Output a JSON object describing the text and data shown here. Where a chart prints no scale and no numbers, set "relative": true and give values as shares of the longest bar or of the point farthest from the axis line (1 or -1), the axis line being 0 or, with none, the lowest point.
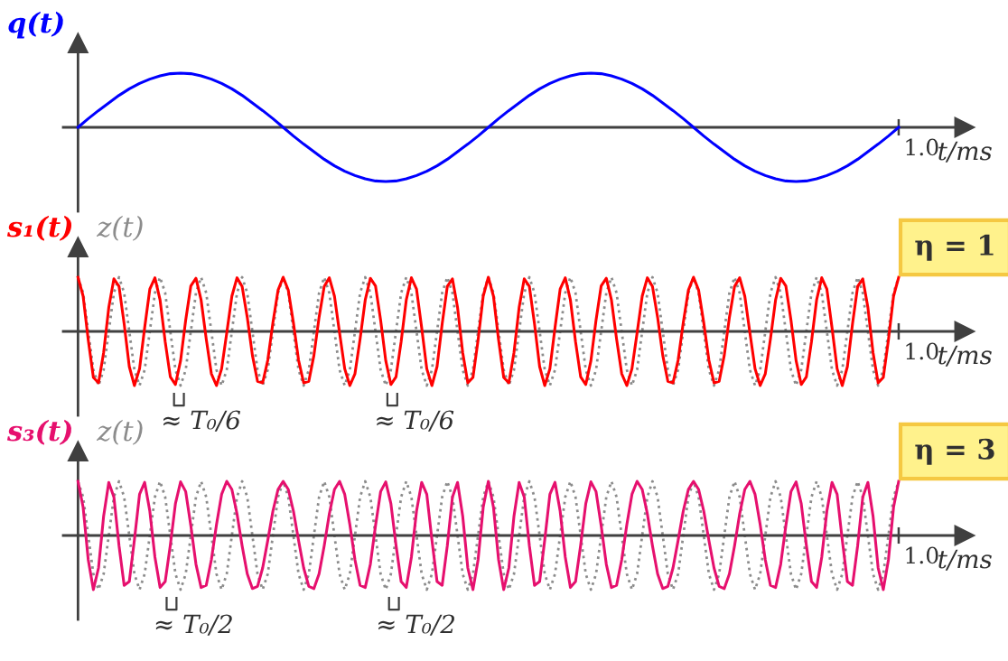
{
  "chart_data": [
    {
      "type": "line",
      "relative": true,
      "xlabel": "t/ms",
      "legend": "top left",
      "categories": [
        null,
        null,
        null,
        null,
        null,
        null,
        null,
        null,
        null,
        null,
        null,
        null,
        null,
        null,
        null,
        null,
        null,
        null,
        null,
        null,
        null,
        null,
        null,
        null,
        null,
        null,
        null,
        null,
        null,
        null,
        null,
        null,
        null,
        null,
        null,
        null,
        null,
        null,
        null,
        null,
        null,
        null,
        null,
        null,
        null,
        null,
        null,
        null,
        null,
        null,
        null,
        null,
        null,
        null,
        null,
        null,
        null,
        null,
        null,
        null,
        null,
        null,
        null,
        null,
        null,
        null,
        null,
        null,
        null,
        null,
        null,
        null,
        null,
        null,
        null,
        null,
        null,
        null,
        null,
        null,
        null
      ],
      "annotations": [
        "1.0"
      ],
      "series": [
        {
          "name": "q(t)",
          "color": "#0000ff",
          "line_style": "solid",
          "values": [
            0,
            0.16,
            0.31,
            0.45,
            0.59,
            0.71,
            0.81,
            0.89,
            0.95,
            0.99,
            1,
            0.99,
            0.95,
            0.89,
            0.81,
            0.71,
            0.59,
            0.45,
            0.31,
            0.16,
            0,
            -0.16,
            -0.31,
            -0.45,
            -0.59,
            -0.71,
            -0.81,
            -0.89,
            -0.95,
            -0.99,
            -1,
            -0.99,
            -0.95,
            -0.89,
            -0.81,
            -0.71,
            -0.59,
            -0.45,
            -0.31,
            -0.16,
            0,
            0.16,
            0.31,
            0.45,
            0.59,
            0.71,
            0.81,
            0.89,
            0.95,
            0.99,
            1,
            0.99,
            0.95,
            0.89,
            0.81,
            0.71,
            0.59,
            0.45,
            0.31,
            0.16,
            0,
            -0.16,
            -0.31,
            -0.45,
            -0.59,
            -0.71,
            -0.81,
            -0.89,
            -0.95,
            -0.99,
            -1,
            -0.99,
            -0.95,
            -0.89,
            -0.81,
            -0.71,
            -0.59,
            -0.45,
            -0.31,
            -0.16,
            0
          ]
        }
      ]
    },
    {
      "type": "line",
      "relative": true,
      "xlabel": "t/ms",
      "legend": "top left",
      "annotations": [
        "1.0",
        "η = 1",
        "≈ T₀/6",
        "≈ T₀/6"
      ],
      "categories": [
        null,
        null,
        null,
        null,
        null,
        null,
        null,
        null,
        null,
        null,
        null,
        null,
        null,
        null,
        null,
        null,
        null,
        null,
        null,
        null,
        null,
        null,
        null,
        null,
        null,
        null,
        null,
        null,
        null,
        null,
        null,
        null,
        null,
        null,
        null,
        null,
        null,
        null,
        null,
        null,
        null,
        null,
        null,
        null,
        null,
        null,
        null,
        null,
        null,
        null,
        null,
        null,
        null,
        null,
        null,
        null,
        null,
        null,
        null,
        null,
        null,
        null,
        null,
        null,
        null,
        null,
        null,
        null,
        null,
        null,
        null,
        null,
        null,
        null,
        null,
        null,
        null,
        null,
        null,
        null,
        null,
        null,
        null,
        null,
        null,
        null,
        null,
        null,
        null,
        null,
        null,
        null,
        null,
        null,
        null,
        null,
        null,
        null,
        null,
        null,
        null,
        null,
        null,
        null,
        null,
        null,
        null,
        null,
        null,
        null,
        null,
        null,
        null,
        null,
        null,
        null,
        null,
        null,
        null,
        null,
        null,
        null,
        null,
        null,
        null,
        null,
        null,
        null,
        null,
        null,
        null,
        null,
        null,
        null,
        null,
        null,
        null,
        null,
        null,
        null,
        null,
        null,
        null,
        null,
        null,
        null,
        null,
        null,
        null,
        null,
        null,
        null,
        null,
        null,
        null,
        null,
        null,
        null,
        null,
        null,
        null
      ],
      "series": [
        {
          "name": "s₁(t)",
          "color": "#ff0000",
          "line_style": "solid",
          "values": [
            1,
            0.65,
            -0.16,
            -0.85,
            -0.95,
            -0.39,
            0.44,
            0.97,
            0.83,
            0.14,
            -0.65,
            -1,
            -0.69,
            0.07,
            0.78,
            0.99,
            0.58,
            -0.19,
            -0.84,
            -0.98,
            -0.54,
            0.21,
            0.84,
            0.98,
            0.58,
            -0.14,
            -0.78,
            -1,
            -0.69,
            -0.03,
            0.65,
            0.99,
            0.83,
            0.26,
            -0.44,
            -0.92,
            -0.95,
            -0.53,
            0.16,
            0.76,
            1,
            0.76,
            0.16,
            -0.53,
            -0.95,
            -0.92,
            -0.44,
            0.26,
            0.83,
            0.99,
            0.65,
            -0.03,
            -0.69,
            -1,
            -0.78,
            -0.14,
            0.58,
            0.98,
            0.84,
            0.21,
            -0.54,
            -0.98,
            -0.84,
            -0.19,
            0.58,
            0.99,
            0.78,
            0.07,
            -0.69,
            -1,
            -0.65,
            0.14,
            0.83,
            0.97,
            0.44,
            -0.39,
            -0.95,
            -0.85,
            -0.16,
            0.65,
            1,
            0.65,
            -0.16,
            -0.85,
            -0.95,
            -0.39,
            0.44,
            0.97,
            0.83,
            0.14,
            -0.65,
            -1,
            -0.69,
            0.07,
            0.78,
            0.99,
            0.58,
            -0.19,
            -0.84,
            -0.98,
            -0.54,
            0.21,
            0.84,
            0.98,
            0.58,
            -0.14,
            -0.78,
            -1,
            -0.69,
            -0.03,
            0.65,
            0.99,
            0.83,
            0.26,
            -0.44,
            -0.92,
            -0.95,
            -0.53,
            0.16,
            0.76,
            1,
            0.76,
            0.16,
            -0.53,
            -0.95,
            -0.92,
            -0.44,
            0.26,
            0.83,
            0.99,
            0.65,
            -0.03,
            -0.69,
            -1,
            -0.78,
            -0.14,
            0.58,
            0.98,
            0.84,
            0.21,
            -0.54,
            -0.98,
            -0.84,
            -0.19,
            0.58,
            0.99,
            0.78,
            0.07,
            -0.69,
            -1,
            -0.65,
            0.14,
            0.83,
            0.97,
            0.44,
            -0.39,
            -0.95,
            -0.85,
            -0.16,
            0.65,
            1
          ]
        },
        {
          "name": "z(t)",
          "color": "#8c8c8c",
          "line_style": "dotted",
          "values": [
            1,
            0.71,
            0,
            -0.71,
            -1,
            -0.71,
            0,
            0.71,
            1,
            0.71,
            0,
            -0.71,
            -1,
            -0.71,
            0,
            0.71,
            1,
            0.71,
            0,
            -0.71,
            -1,
            -0.71,
            0,
            0.71,
            1,
            0.71,
            0,
            -0.71,
            -1,
            -0.71,
            0,
            0.71,
            1,
            0.71,
            0,
            -0.71,
            -1,
            -0.71,
            0,
            0.71,
            1,
            0.71,
            0,
            -0.71,
            -1,
            -0.71,
            0,
            0.71,
            1,
            0.71,
            0,
            -0.71,
            -1,
            -0.71,
            0,
            0.71,
            1,
            0.71,
            0,
            -0.71,
            -1,
            -0.71,
            0,
            0.71,
            1,
            0.71,
            0,
            -0.71,
            -1,
            -0.71,
            0,
            0.71,
            1,
            0.71,
            0,
            -0.71,
            -1,
            -0.71,
            0,
            0.71,
            1,
            0.71,
            0,
            -0.71,
            -1,
            -0.71,
            0,
            0.71,
            1,
            0.71,
            0,
            -0.71,
            -1,
            -0.71,
            0,
            0.71,
            1,
            0.71,
            0,
            -0.71,
            -1,
            -0.71,
            0,
            0.71,
            1,
            0.71,
            0,
            -0.71,
            -1,
            -0.71,
            0,
            0.71,
            1,
            0.71,
            0,
            -0.71,
            -1,
            -0.71,
            0,
            0.71,
            1,
            0.71,
            0,
            -0.71,
            -1,
            -0.71,
            0,
            0.71,
            1,
            0.71,
            0,
            -0.71,
            -1,
            -0.71,
            0,
            0.71,
            1,
            0.71,
            0,
            -0.71,
            -1,
            -0.71,
            0,
            0.71,
            1,
            0.71,
            0,
            -0.71,
            -1,
            -0.71,
            0,
            0.71,
            1,
            0.71,
            0,
            -0.71,
            -1,
            -0.71,
            0,
            0.71,
            1
          ]
        }
      ]
    },
    {
      "type": "line",
      "relative": true,
      "xlabel": "t/ms",
      "legend": "top left",
      "annotations": [
        "1.0",
        "η = 3",
        "≈ T₀/2",
        "≈ T₀/2"
      ],
      "categories": [
        null,
        null,
        null,
        null,
        null,
        null,
        null,
        null,
        null,
        null,
        null,
        null,
        null,
        null,
        null,
        null,
        null,
        null,
        null,
        null,
        null,
        null,
        null,
        null,
        null,
        null,
        null,
        null,
        null,
        null,
        null,
        null,
        null,
        null,
        null,
        null,
        null,
        null,
        null,
        null,
        null,
        null,
        null,
        null,
        null,
        null,
        null,
        null,
        null,
        null,
        null,
        null,
        null,
        null,
        null,
        null,
        null,
        null,
        null,
        null,
        null,
        null,
        null,
        null,
        null,
        null,
        null,
        null,
        null,
        null,
        null,
        null,
        null,
        null,
        null,
        null,
        null,
        null,
        null,
        null,
        null,
        null,
        null,
        null,
        null,
        null,
        null,
        null,
        null,
        null,
        null,
        null,
        null,
        null,
        null,
        null,
        null,
        null,
        null,
        null,
        null,
        null,
        null,
        null,
        null,
        null,
        null,
        null,
        null,
        null,
        null,
        null,
        null,
        null,
        null,
        null,
        null,
        null,
        null,
        null,
        null,
        null,
        null,
        null,
        null,
        null,
        null,
        null,
        null,
        null,
        null,
        null,
        null,
        null,
        null,
        null,
        null,
        null,
        null,
        null,
        null,
        null,
        null,
        null,
        null,
        null,
        null,
        null,
        null,
        null,
        null,
        null,
        null,
        null,
        null,
        null,
        null,
        null,
        null,
        null,
        null
      ],
      "series": [
        {
          "name": "s₃(t)",
          "color": "#e6106e",
          "line_style": "solid",
          "values": [
            1,
            0.52,
            -0.45,
            -1,
            -0.6,
            0.36,
            0.98,
            0.71,
            -0.19,
            -0.92,
            -0.85,
            -0.08,
            0.76,
            0.98,
            0.45,
            -0.4,
            -0.96,
            -0.85,
            -0.18,
            0.59,
            0.99,
            0.81,
            0.18,
            -0.53,
            -0.96,
            -0.92,
            -0.45,
            0.2,
            0.76,
            1,
            0.85,
            0.4,
            -0.19,
            -0.71,
            -0.98,
            -0.94,
            -0.6,
            -0.09,
            0.45,
            0.85,
            1,
            0.85,
            0.45,
            -0.09,
            -0.6,
            -0.94,
            -0.98,
            -0.71,
            -0.19,
            0.4,
            0.85,
            1,
            0.76,
            0.2,
            -0.45,
            -0.92,
            -0.96,
            -0.53,
            0.18,
            0.81,
            0.99,
            0.59,
            -0.18,
            -0.85,
            -0.96,
            -0.4,
            0.45,
            0.98,
            0.76,
            -0.08,
            -0.85,
            -0.92,
            -0.19,
            0.71,
            0.98,
            0.36,
            -0.6,
            -1,
            -0.45,
            0.52,
            1,
            0.52,
            -0.45,
            -1,
            -0.6,
            0.36,
            0.98,
            0.71,
            -0.19,
            -0.92,
            -0.85,
            -0.08,
            0.76,
            0.98,
            0.45,
            -0.4,
            -0.96,
            -0.85,
            -0.18,
            0.59,
            0.99,
            0.81,
            0.18,
            -0.53,
            -0.96,
            -0.92,
            -0.45,
            0.2,
            0.76,
            1,
            0.85,
            0.4,
            -0.19,
            -0.71,
            -0.98,
            -0.94,
            -0.6,
            -0.09,
            0.45,
            0.85,
            1,
            0.85,
            0.45,
            -0.09,
            -0.6,
            -0.94,
            -0.98,
            -0.71,
            -0.19,
            0.4,
            0.85,
            1,
            0.76,
            0.2,
            -0.45,
            -0.92,
            -0.96,
            -0.53,
            0.18,
            0.81,
            0.99,
            0.59,
            -0.18,
            -0.85,
            -0.96,
            -0.4,
            0.45,
            0.98,
            0.76,
            -0.08,
            -0.85,
            -0.92,
            -0.19,
            0.71,
            0.98,
            0.36,
            -0.6,
            -1,
            -0.45,
            0.52,
            1
          ]
        },
        {
          "name": "z(t)",
          "color": "#8c8c8c",
          "line_style": "dotted",
          "values": [
            1,
            0.71,
            0,
            -0.71,
            -1,
            -0.71,
            0,
            0.71,
            1,
            0.71,
            0,
            -0.71,
            -1,
            -0.71,
            0,
            0.71,
            1,
            0.71,
            0,
            -0.71,
            -1,
            -0.71,
            0,
            0.71,
            1,
            0.71,
            0,
            -0.71,
            -1,
            -0.71,
            0,
            0.71,
            1,
            0.71,
            0,
            -0.71,
            -1,
            -0.71,
            0,
            0.71,
            1,
            0.71,
            0,
            -0.71,
            -1,
            -0.71,
            0,
            0.71,
            1,
            0.71,
            0,
            -0.71,
            -1,
            -0.71,
            0,
            0.71,
            1,
            0.71,
            0,
            -0.71,
            -1,
            -0.71,
            0,
            0.71,
            1,
            0.71,
            0,
            -0.71,
            -1,
            -0.71,
            0,
            0.71,
            1,
            0.71,
            0,
            -0.71,
            -1,
            -0.71,
            0,
            0.71,
            1,
            0.71,
            0,
            -0.71,
            -1,
            -0.71,
            0,
            0.71,
            1,
            0.71,
            0,
            -0.71,
            -1,
            -0.71,
            0,
            0.71,
            1,
            0.71,
            0,
            -0.71,
            -1,
            -0.71,
            0,
            0.71,
            1,
            0.71,
            0,
            -0.71,
            -1,
            -0.71,
            0,
            0.71,
            1,
            0.71,
            0,
            -0.71,
            -1,
            -0.71,
            0,
            0.71,
            1,
            0.71,
            0,
            -0.71,
            -1,
            -0.71,
            0,
            0.71,
            1,
            0.71,
            0,
            -0.71,
            -1,
            -0.71,
            0,
            0.71,
            1,
            0.71,
            0,
            -0.71,
            -1,
            -0.71,
            0,
            0.71,
            1,
            0.71,
            0,
            -0.71,
            -1,
            -0.71,
            0,
            0.71,
            1,
            0.71,
            0,
            -0.71,
            -1,
            -0.71,
            0,
            0.71,
            1
          ]
        }
      ]
    }
  ]
}
